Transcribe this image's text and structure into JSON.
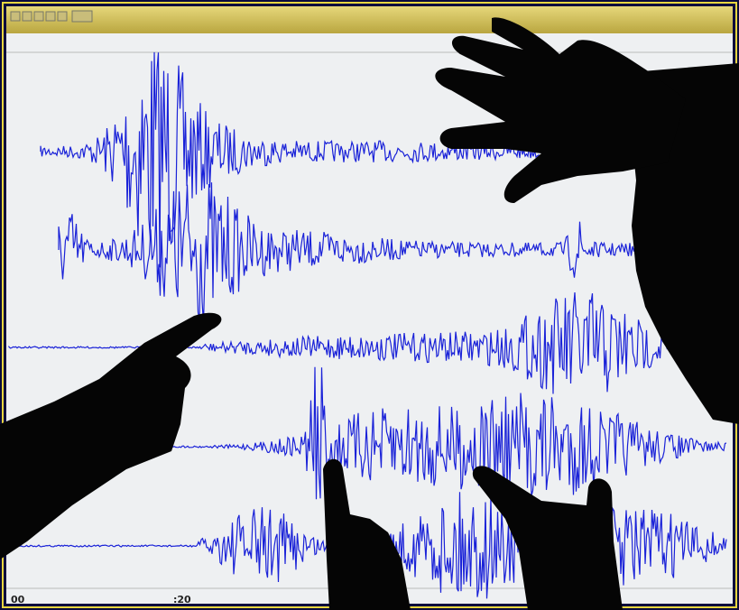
{
  "screen": {
    "time_labels": [
      "00",
      ":20"
    ]
  }
}
